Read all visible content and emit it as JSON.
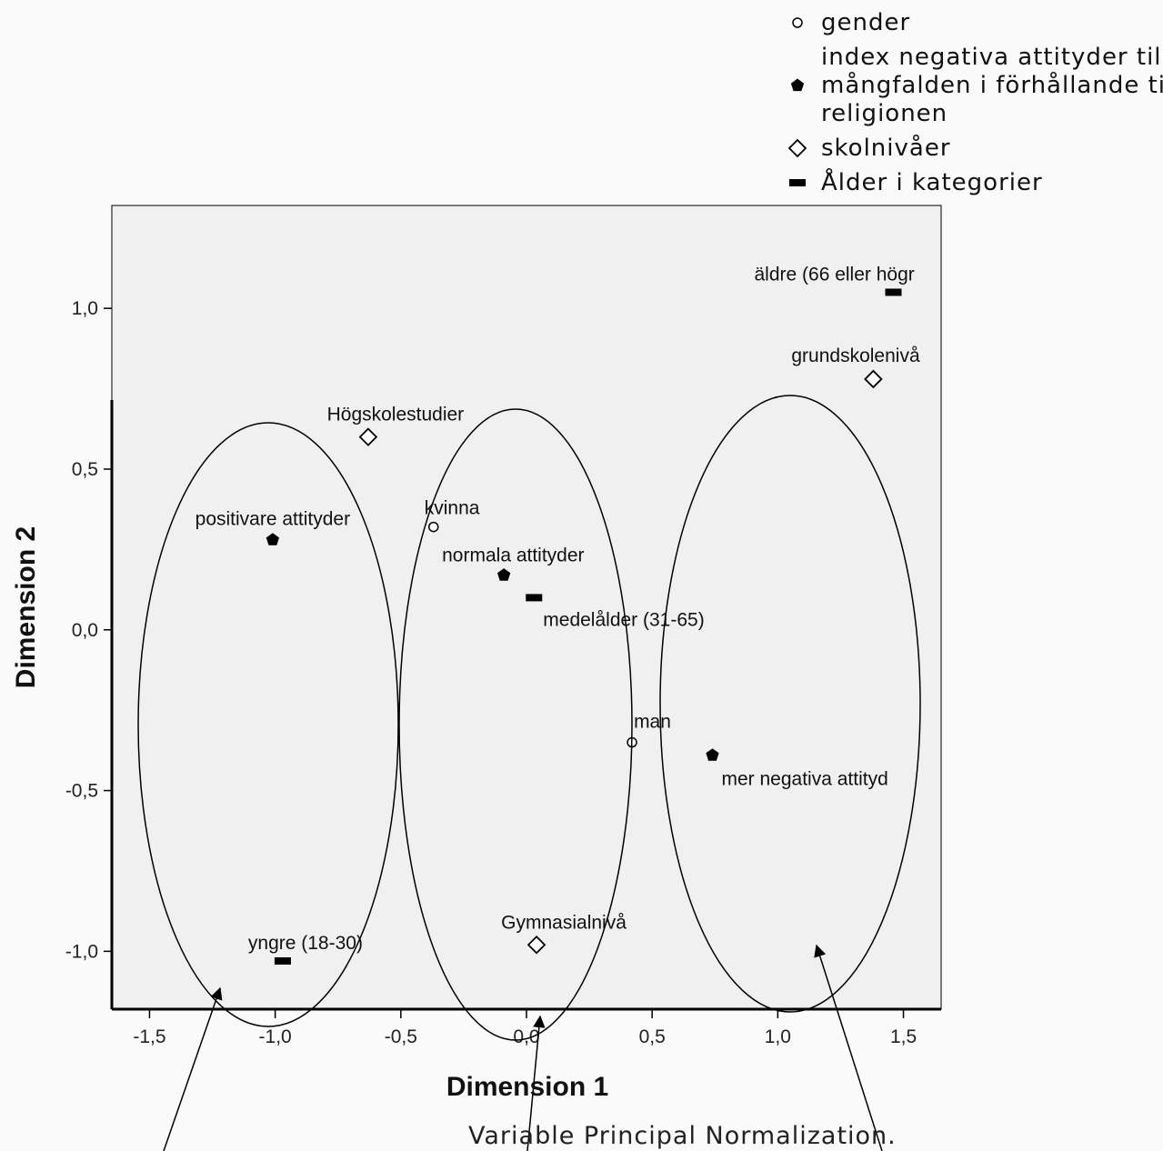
{
  "chart_data": {
    "type": "scatter",
    "xlabel": "Dimension 1",
    "ylabel": "Dimension 2",
    "xlim": [
      -1.65,
      1.65
    ],
    "ylim": [
      -1.18,
      1.32
    ],
    "xticks": [
      -1.5,
      -1.0,
      -0.5,
      0.0,
      0.5,
      1.0,
      1.5
    ],
    "yticks": [
      -1.0,
      -0.5,
      0.0,
      0.5,
      1.0
    ],
    "xtick_labels": [
      "-1,5",
      "-1,0",
      "-0,5",
      "0,0",
      "0,5",
      "1,0",
      "1,5"
    ],
    "ytick_labels": [
      "-1,0",
      "-0,5",
      "0,0",
      "0,5",
      "1,0"
    ],
    "note": "Variable Principal Normalization.",
    "legend_position": "top-right",
    "series": [
      {
        "name": "gender",
        "marker": "circle",
        "points": [
          {
            "label": "kvinna",
            "x": -0.37,
            "y": 0.32
          },
          {
            "label": "man",
            "x": 0.42,
            "y": -0.35
          }
        ]
      },
      {
        "name": "index negativa attityder till mångfalden i förhållande till religionen",
        "marker": "pentagon",
        "legend_lines": [
          "index negativa attityder till",
          "mångfalden i förhållande till",
          "religionen"
        ],
        "points": [
          {
            "label": "positivare attityder",
            "x": -1.01,
            "y": 0.28
          },
          {
            "label": "normala attityder",
            "x": -0.09,
            "y": 0.17
          },
          {
            "label": "mer negativa attityd",
            "x": 0.74,
            "y": -0.39
          }
        ]
      },
      {
        "name": "skolnivåer",
        "marker": "diamond",
        "points": [
          {
            "label": "Högskolestudier",
            "x": -0.63,
            "y": 0.6
          },
          {
            "label": "Gymnasialnivå",
            "x": 0.04,
            "y": -0.98
          },
          {
            "label": "grundskolenivå",
            "x": 1.38,
            "y": 0.78
          }
        ]
      },
      {
        "name": "Ålder i kategorier",
        "marker": "rect",
        "points": [
          {
            "label": "yngre (18-30)",
            "x": -0.97,
            "y": -1.03
          },
          {
            "label": "medelålder (31-65)",
            "x": 0.03,
            "y": 0.1
          },
          {
            "label": "äldre (66 eller högr",
            "x": 1.46,
            "y": 1.05
          }
        ]
      }
    ]
  }
}
